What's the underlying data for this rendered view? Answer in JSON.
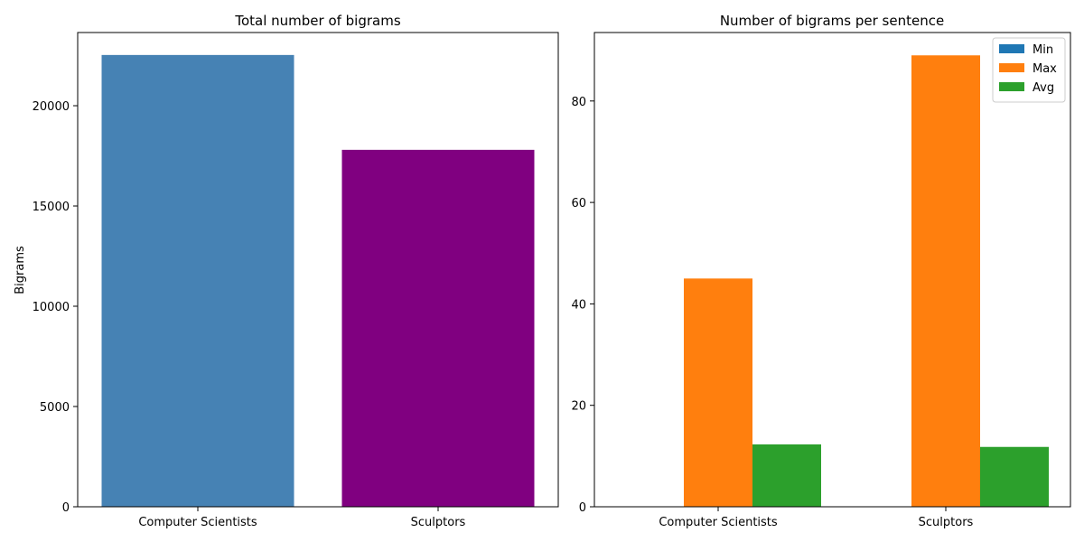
{
  "chart_data": [
    {
      "type": "bar",
      "title": "Total number of bigrams",
      "xlabel": "",
      "ylabel": "Bigrams",
      "categories": [
        "Computer Scientists",
        "Sculptors"
      ],
      "values": [
        22530,
        17800
      ],
      "bar_colors": [
        "#4682b4",
        "#800080"
      ],
      "ylim": [
        0,
        23650
      ],
      "yticks": [
        0,
        5000,
        10000,
        15000,
        20000
      ],
      "grid": false
    },
    {
      "type": "bar",
      "title": "Number of bigrams per sentence",
      "xlabel": "",
      "ylabel": "",
      "categories": [
        "Computer Scientists",
        "Sculptors"
      ],
      "series": [
        {
          "name": "Min",
          "values": [
            0,
            0
          ],
          "color": "#1f77b4"
        },
        {
          "name": "Max",
          "values": [
            45,
            89
          ],
          "color": "#ff7f0e"
        },
        {
          "name": "Avg",
          "values": [
            12.3,
            11.8
          ],
          "color": "#2ca02c"
        }
      ],
      "ylim": [
        0,
        93.5
      ],
      "yticks": [
        0,
        20,
        40,
        60,
        80
      ],
      "legend": "top-right",
      "grid": false
    }
  ]
}
